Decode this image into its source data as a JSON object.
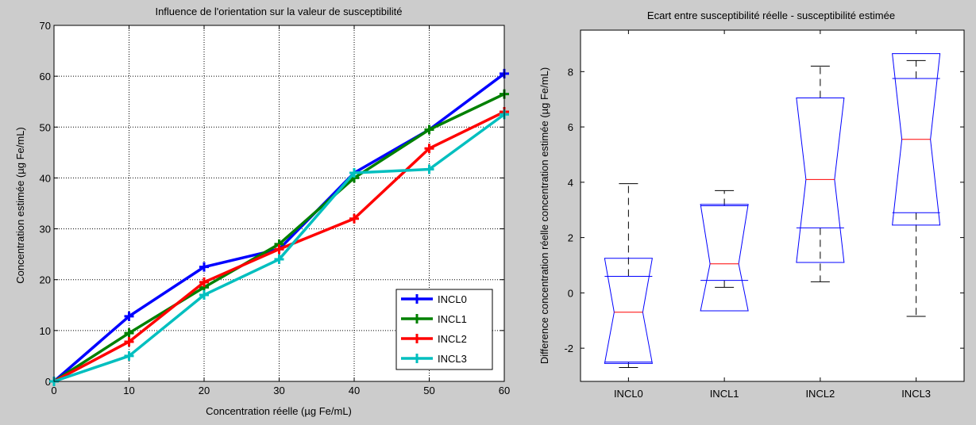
{
  "chart_data": [
    {
      "type": "line",
      "title": "Influence de l'orientation sur la valeur de susceptibilité",
      "xlabel": "Concentration réelle (µg Fe/mL)",
      "ylabel": "Concentration estimée (µg Fe/mL)",
      "xlim": [
        0,
        60
      ],
      "ylim": [
        0,
        70
      ],
      "xticks": [
        0,
        10,
        20,
        30,
        40,
        50,
        60
      ],
      "yticks": [
        0,
        10,
        20,
        30,
        40,
        50,
        60,
        70
      ],
      "grid": true,
      "legend_position": "bottom-right",
      "x": [
        0,
        10,
        20,
        30,
        40,
        50,
        60
      ],
      "series": [
        {
          "name": "INCL0",
          "color": "#0000ff",
          "values": [
            0,
            12.8,
            22.5,
            26,
            41,
            49.5,
            60.5
          ]
        },
        {
          "name": "INCL1",
          "color": "#008000",
          "values": [
            0,
            9.5,
            18.5,
            27,
            40,
            49.5,
            56.5
          ]
        },
        {
          "name": "INCL2",
          "color": "#ff0000",
          "values": [
            0,
            7.8,
            19.5,
            26,
            32,
            45.8,
            53
          ]
        },
        {
          "name": "INCL3",
          "color": "#00bfbf",
          "values": [
            0,
            5,
            17,
            24,
            41,
            41.7,
            52.5
          ]
        }
      ]
    },
    {
      "type": "boxplot",
      "title": "Ecart entre susceptibilité réelle - susceptibilité estimée",
      "xlabel": "",
      "ylabel": "Difference concentration réelle concentration estimée (µg Fe/mL)",
      "ylim": [
        -3.2,
        9.5
      ],
      "yticks": [
        -2,
        0,
        2,
        4,
        6,
        8
      ],
      "grid": false,
      "categories": [
        "INCL0",
        "INCL1",
        "INCL2",
        "INCL3"
      ],
      "box_color": "#0000ff",
      "median_color": "#ff0000",
      "whisker_color": "#000000",
      "boxes": [
        {
          "q1": -2.5,
          "median": -0.7,
          "q3": 0.6,
          "notch_low": -2.55,
          "notch_high": 1.25,
          "whisker_low": -2.7,
          "whisker_high": 3.95
        },
        {
          "q1": 0.45,
          "median": 1.05,
          "q3": 3.15,
          "notch_low": -0.65,
          "notch_high": 3.2,
          "whisker_low": 0.2,
          "whisker_high": 3.7
        },
        {
          "q1": 2.35,
          "median": 4.1,
          "q3": 7.05,
          "notch_low": 1.1,
          "notch_high": 7.05,
          "whisker_low": 0.4,
          "whisker_high": 8.2
        },
        {
          "q1": 2.9,
          "median": 5.55,
          "q3": 7.75,
          "notch_low": 2.45,
          "notch_high": 8.65,
          "whisker_low": -0.85,
          "whisker_high": 8.4
        }
      ]
    }
  ]
}
